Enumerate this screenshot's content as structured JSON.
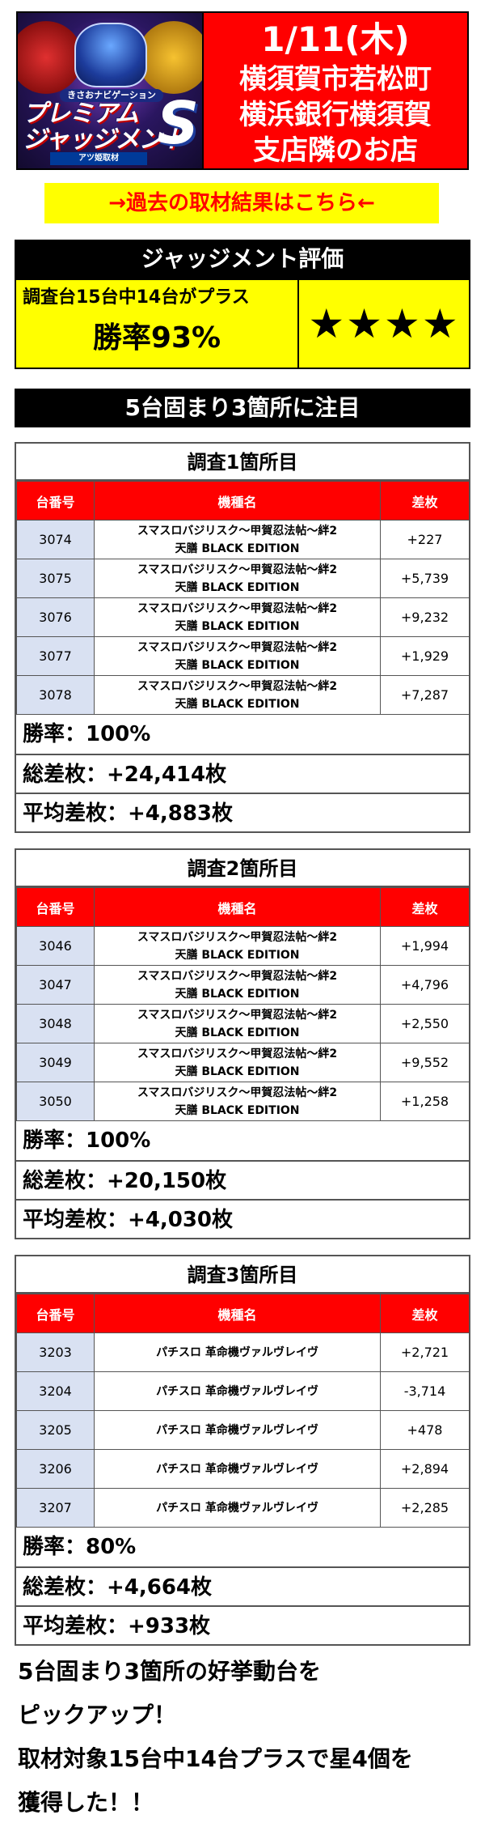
{
  "header": {
    "logo": {
      "tag": "きさおナビゲーション",
      "title_line1": "プレミアム",
      "title_line2": "ジャッジメント",
      "title_letter": "S",
      "badge": "アツ姫取材"
    },
    "date": "1/11(木)",
    "line1": "横須賀市若松町",
    "line2": "横浜銀行横須賀",
    "line3": "支店隣のお店",
    "colors": {
      "bg": "#ff0000",
      "text": "#ffffff"
    }
  },
  "past_link": {
    "label": "→過去の取材結果はこちら←",
    "colors": {
      "bg": "#ffff00",
      "text": "#ff0000"
    }
  },
  "judgment": {
    "title": "ジャッジメント評価",
    "description": "調査台15台中14台がプラス",
    "win_rate": "勝率93%",
    "stars": "★★★★"
  },
  "section_heading": "5台固まり3箇所に注目",
  "columns": {
    "num": "台番号",
    "machine": "機種名",
    "diff": "差枚"
  },
  "surveys": [
    {
      "title": "調査1箇所目",
      "rows": [
        {
          "num": "3074",
          "machine_line1": "スマスロバジリスク～甲賀忍法帖～絆2",
          "machine_line2": "天膳 BLACK EDITION",
          "diff": "+227"
        },
        {
          "num": "3075",
          "machine_line1": "スマスロバジリスク～甲賀忍法帖～絆2",
          "machine_line2": "天膳 BLACK EDITION",
          "diff": "+5,739"
        },
        {
          "num": "3076",
          "machine_line1": "スマスロバジリスク～甲賀忍法帖～絆2",
          "machine_line2": "天膳 BLACK EDITION",
          "diff": "+9,232"
        },
        {
          "num": "3077",
          "machine_line1": "スマスロバジリスク～甲賀忍法帖～絆2",
          "machine_line2": "天膳 BLACK EDITION",
          "diff": "+1,929"
        },
        {
          "num": "3078",
          "machine_line1": "スマスロバジリスク～甲賀忍法帖～絆2",
          "machine_line2": "天膳 BLACK EDITION",
          "diff": "+7,287"
        }
      ],
      "win_rate": "勝率：100%",
      "total": "総差枚：+24,414枚",
      "average": "平均差枚：+4,883枚"
    },
    {
      "title": "調査2箇所目",
      "rows": [
        {
          "num": "3046",
          "machine_line1": "スマスロバジリスク～甲賀忍法帖～絆2",
          "machine_line2": "天膳 BLACK EDITION",
          "diff": "+1,994"
        },
        {
          "num": "3047",
          "machine_line1": "スマスロバジリスク～甲賀忍法帖～絆2",
          "machine_line2": "天膳 BLACK EDITION",
          "diff": "+4,796"
        },
        {
          "num": "3048",
          "machine_line1": "スマスロバジリスク～甲賀忍法帖～絆2",
          "machine_line2": "天膳 BLACK EDITION",
          "diff": "+2,550"
        },
        {
          "num": "3049",
          "machine_line1": "スマスロバジリスク～甲賀忍法帖～絆2",
          "machine_line2": "天膳 BLACK EDITION",
          "diff": "+9,552"
        },
        {
          "num": "3050",
          "machine_line1": "スマスロバジリスク～甲賀忍法帖～絆2",
          "machine_line2": "天膳 BLACK EDITION",
          "diff": "+1,258"
        }
      ],
      "win_rate": "勝率：100%",
      "total": "総差枚：+20,150枚",
      "average": "平均差枚：+4,030枚"
    },
    {
      "title": "調査3箇所目",
      "rows": [
        {
          "num": "3203",
          "machine_line1": "パチスロ 革命機ヴァルヴレイヴ",
          "machine_line2": "",
          "diff": "+2,721"
        },
        {
          "num": "3204",
          "machine_line1": "パチスロ 革命機ヴァルヴレイヴ",
          "machine_line2": "",
          "diff": "-3,714"
        },
        {
          "num": "3205",
          "machine_line1": "パチスロ 革命機ヴァルヴレイヴ",
          "machine_line2": "",
          "diff": "+478"
        },
        {
          "num": "3206",
          "machine_line1": "パチスロ 革命機ヴァルヴレイヴ",
          "machine_line2": "",
          "diff": "+2,894"
        },
        {
          "num": "3207",
          "machine_line1": "パチスロ 革命機ヴァルヴレイヴ",
          "machine_line2": "",
          "diff": "+2,285"
        }
      ],
      "win_rate": "勝率：80%",
      "total": "総差枚：+4,664枚",
      "average": "平均差枚：+933枚"
    }
  ],
  "footer": {
    "line1": "5台固まり3箇所の好挙動台を",
    "line2": "ピックアップ！",
    "line3": "取材対象15台中14台プラスで星4個を",
    "line4": "獲得した！！"
  }
}
